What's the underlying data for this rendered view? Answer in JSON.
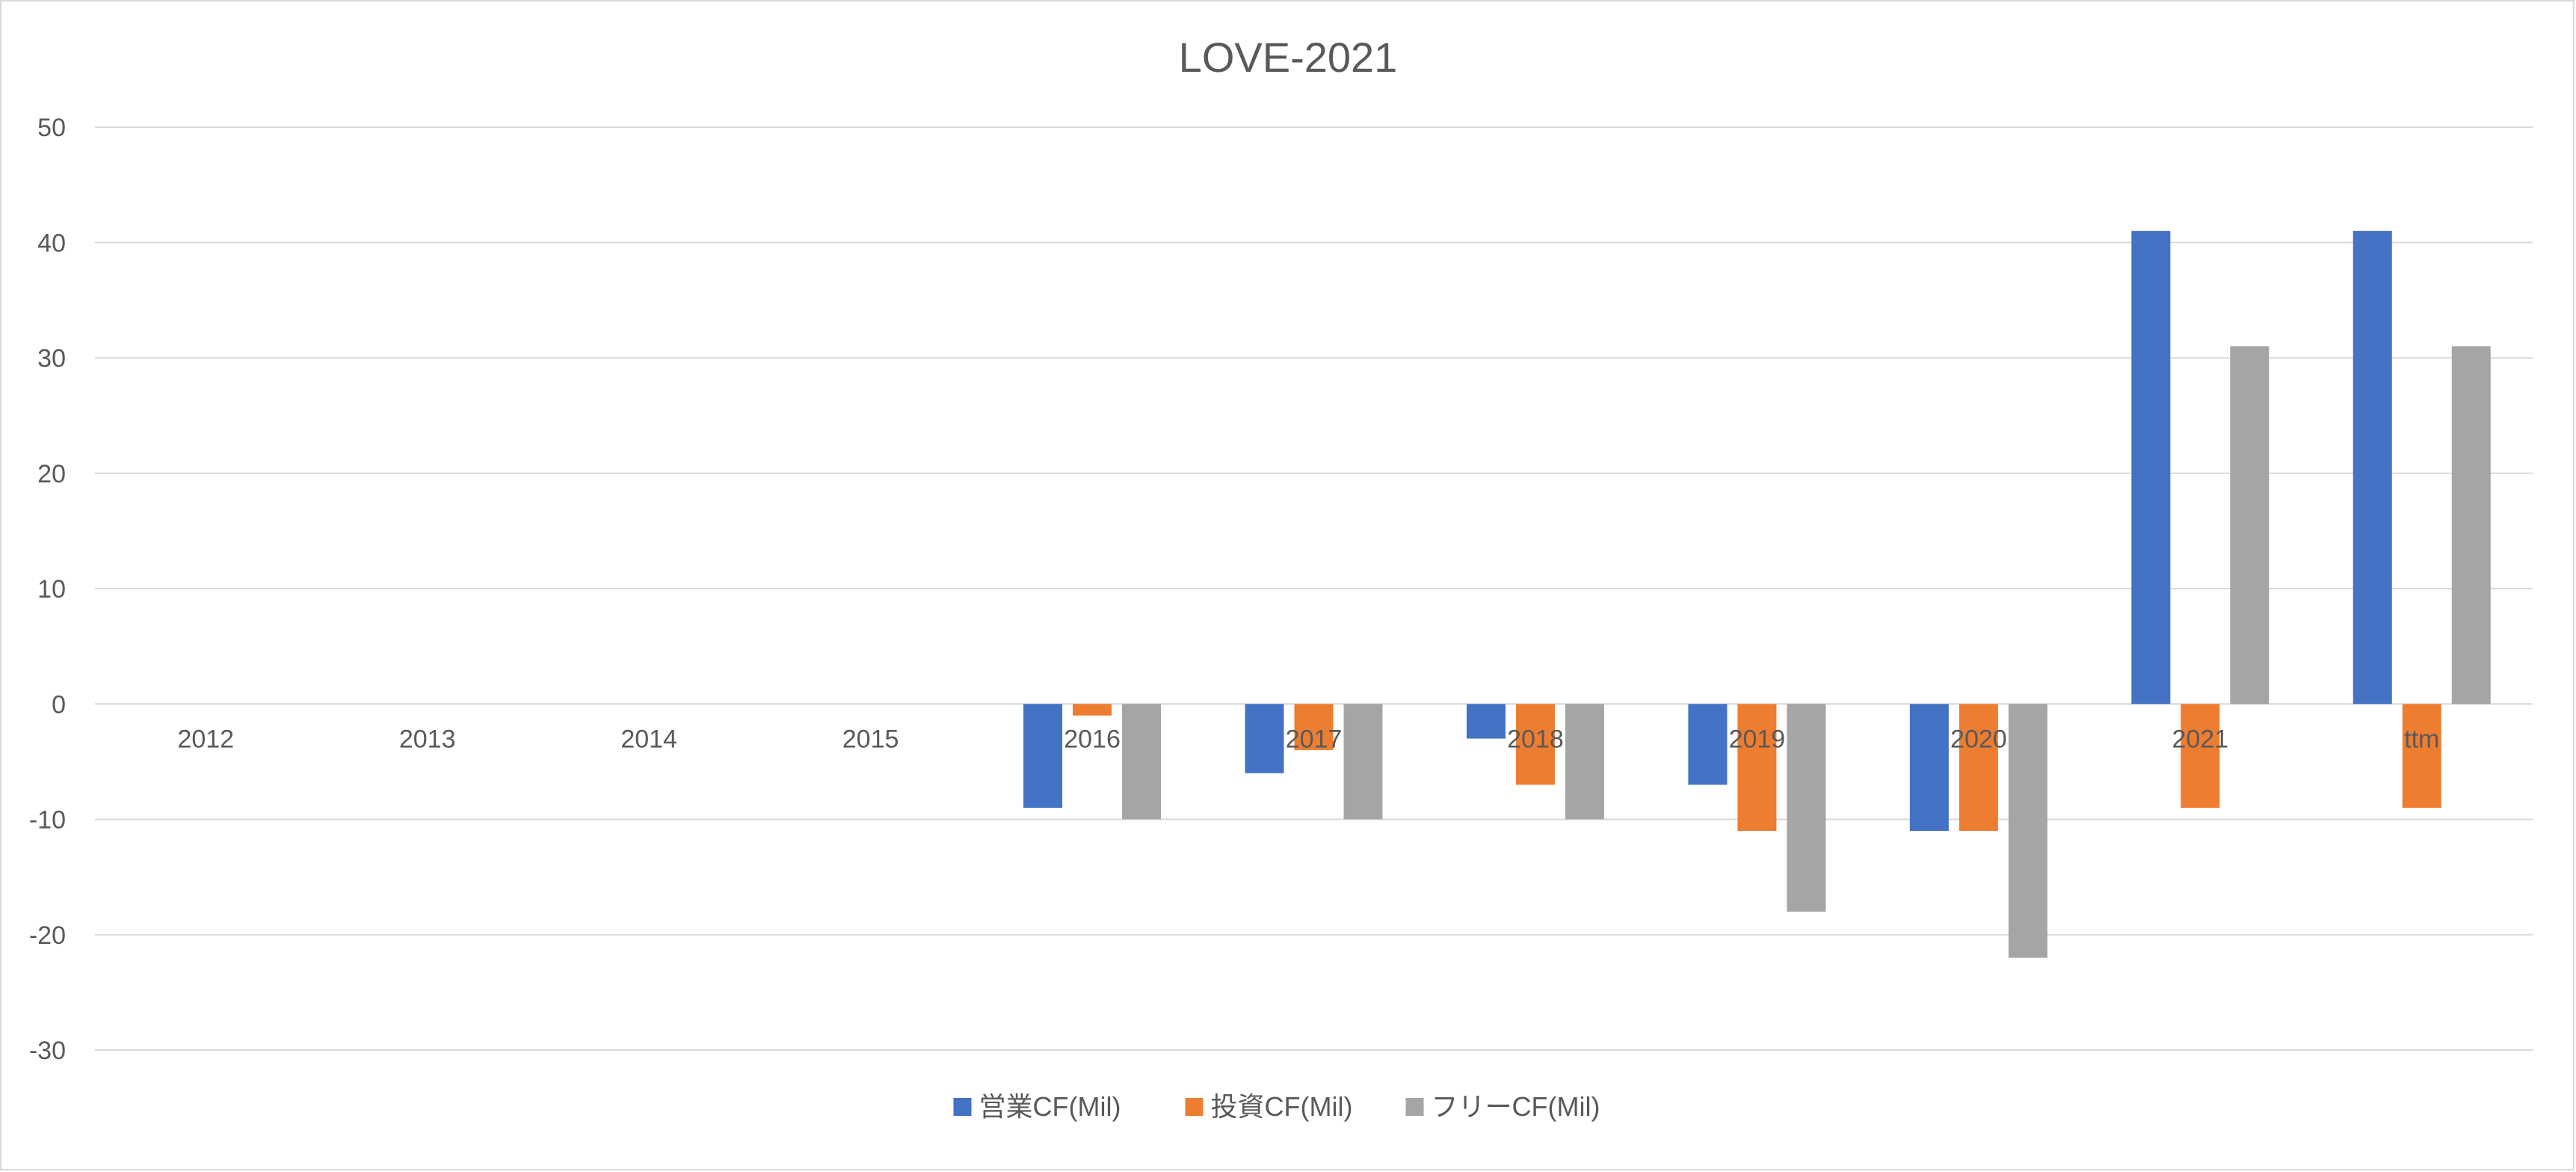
{
  "chart_data": {
    "type": "bar",
    "title": "LOVE-2021",
    "xlabel": "",
    "ylabel": "",
    "categories": [
      "2012",
      "2013",
      "2014",
      "2015",
      "2016",
      "2017",
      "2018",
      "2019",
      "2020",
      "2021",
      "ttm"
    ],
    "series": [
      {
        "name": "営業CF(Mil)",
        "color": "#4472C4",
        "values": [
          null,
          null,
          null,
          null,
          -9,
          -6,
          -3,
          -7,
          -11,
          41,
          41
        ]
      },
      {
        "name": "投資CF(Mil)",
        "color": "#ED7D31",
        "values": [
          null,
          null,
          null,
          null,
          -1,
          -4,
          -7,
          -11,
          -11,
          -9,
          -9
        ]
      },
      {
        "name": "フリーCF(Mil)",
        "color": "#A5A5A5",
        "values": [
          null,
          null,
          null,
          null,
          -10,
          -10,
          -10,
          -18,
          -22,
          31,
          31
        ]
      }
    ],
    "ylim": [
      -30,
      50
    ],
    "yticks": [
      50,
      40,
      30,
      20,
      10,
      0,
      -10,
      -20,
      -30
    ],
    "grid": true,
    "legend": "bottom"
  }
}
